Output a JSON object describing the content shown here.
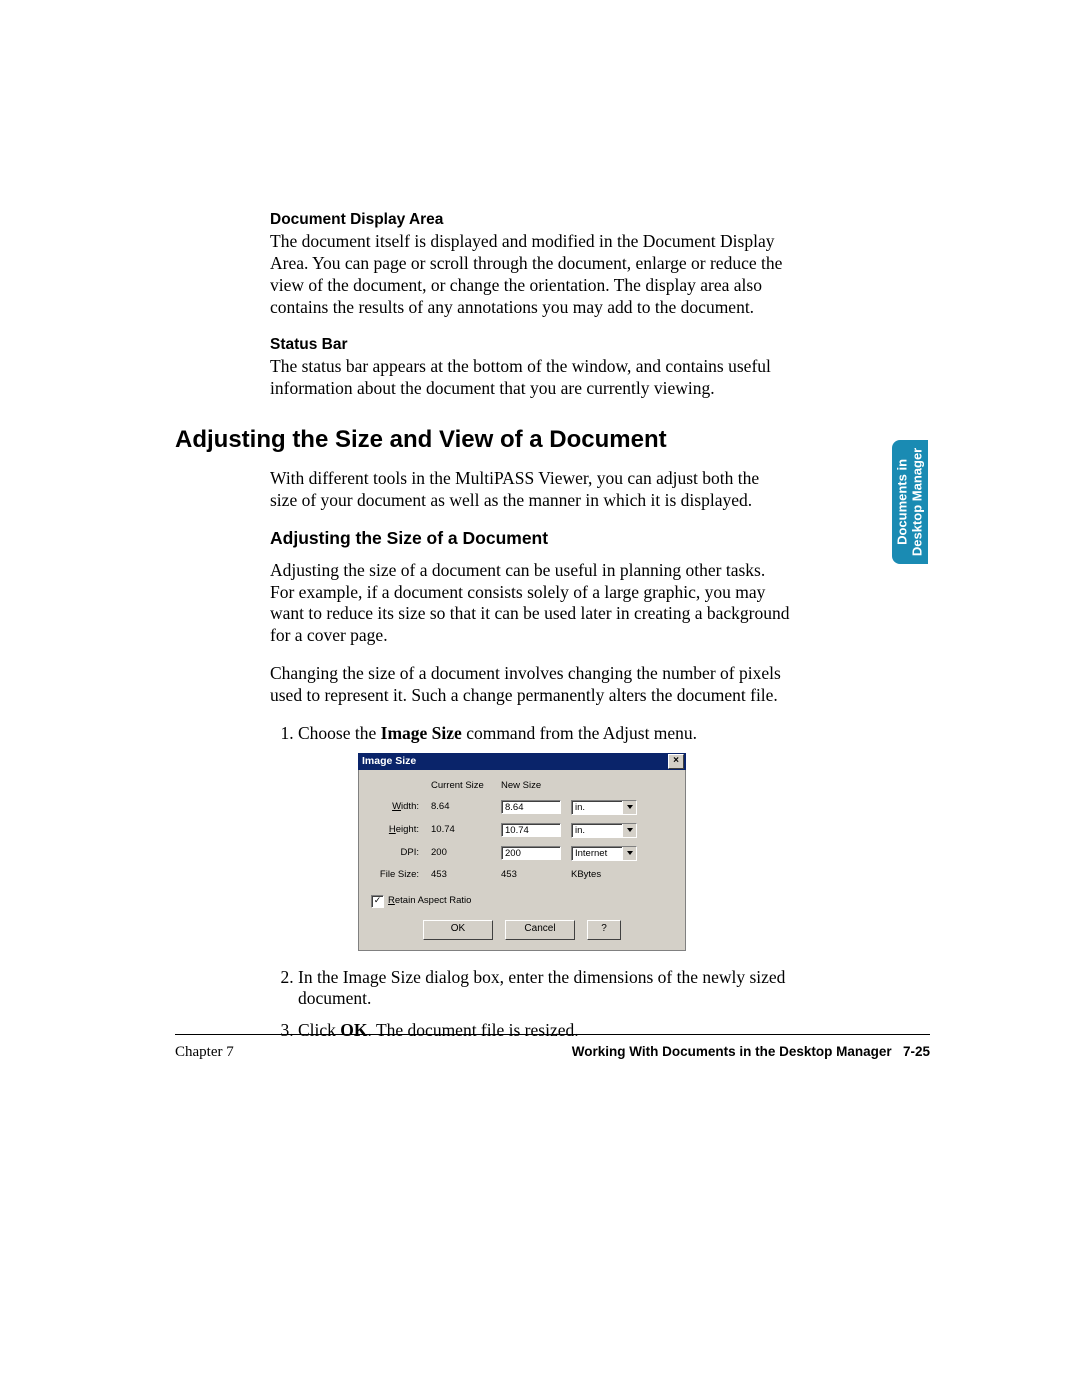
{
  "sections": {
    "docDisplay": {
      "label": "Document Display Area",
      "text": "The document itself is displayed and modified in the Document Display Area. You can page or scroll through the document, enlarge or reduce the view of the document, or change the orientation. The display area also contains the results of any annotations you may add to the document."
    },
    "statusBar": {
      "label": "Status Bar",
      "text": "The status bar appears at the bottom of the window, and contains useful information about the document that you are currently viewing."
    }
  },
  "heading_main": "Adjusting the Size and View of a Document",
  "intro_para": "With different tools in the MultiPASS Viewer, you can adjust both the size of your document as well as the manner in which it is displayed.",
  "heading_sub": "Adjusting the Size of a Document",
  "para_a": "Adjusting the size of a document can be useful in planning other tasks. For example, if a document consists solely of a large graphic, you may want to reduce its size so that it can be used later in creating a background for a cover page.",
  "para_b": "Changing the size of a document involves changing the number of pixels used to represent it. Such a change permanently alters the document file.",
  "steps": {
    "s1_pre": "Choose the ",
    "s1_bold": "Image Size",
    "s1_post": " command from the Adjust menu.",
    "s2": "In the Image Size dialog box, enter the dimensions of the newly sized document.",
    "s3_pre": "Click ",
    "s3_bold": "OK",
    "s3_post": ". The document file is resized."
  },
  "dialog": {
    "title": "Image Size",
    "col_current": "Current Size",
    "col_new": "New Size",
    "rows": {
      "width": {
        "label_u": "W",
        "label_rest": "idth:",
        "cur": "8.64",
        "new": "8.64",
        "unit": "in."
      },
      "height": {
        "label_u": "H",
        "label_rest": "eight:",
        "cur": "10.74",
        "new": "10.74",
        "unit": "in."
      },
      "dpi": {
        "label": "DPI:",
        "cur": "200",
        "new": "200",
        "unit": "Internet"
      },
      "filesize": {
        "label": "File Size:",
        "cur": "453",
        "new": "453",
        "unit": "KBytes"
      }
    },
    "checkbox_u": "R",
    "checkbox_rest": "etain Aspect Ratio",
    "buttons": {
      "ok": "OK",
      "cancel": "Cancel",
      "help": "?"
    }
  },
  "side_tab": {
    "line1": "Documents in",
    "line2": "Desktop Manager"
  },
  "footer": {
    "left": "Chapter 7",
    "right_title": "Working With Documents in the Desktop Manager",
    "right_page": "7-25"
  },
  "colors": {
    "tab_bg": "#1a8bb3",
    "dlg_title_bg": "#0a246a",
    "dlg_face": "#d4d0c8"
  }
}
